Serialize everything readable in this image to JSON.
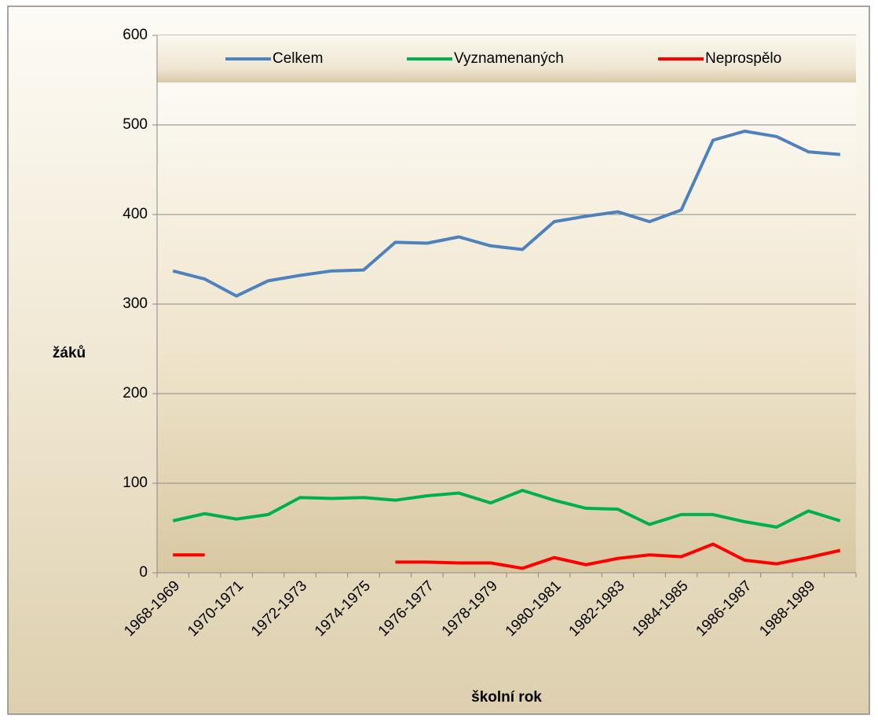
{
  "chart_data": {
    "type": "line",
    "xlabel": "školní rok",
    "ylabel": "žáků",
    "categories": [
      "1968-1969",
      null,
      "1970-1971",
      null,
      "1972-1973",
      null,
      "1974-1975",
      null,
      "1976-1977",
      null,
      "1978-1979",
      null,
      "1980-1981",
      null,
      "1982-1983",
      null,
      "1984-1985",
      null,
      "1986-1987",
      null,
      "1988-1989",
      null
    ],
    "series": [
      {
        "name": "Celkem",
        "color": "#4f81bd",
        "values": [
          337,
          328,
          309,
          326,
          332,
          337,
          338,
          369,
          368,
          375,
          365,
          361,
          392,
          398,
          403,
          392,
          405,
          483,
          493,
          487,
          470,
          467
        ]
      },
      {
        "name": "Vyznamenaných",
        "color": "#00b050",
        "values": [
          58,
          66,
          60,
          65,
          84,
          83,
          84,
          81,
          86,
          89,
          78,
          92,
          81,
          72,
          71,
          54,
          65,
          65,
          57,
          51,
          69,
          58
        ]
      },
      {
        "name": "Neprospělo",
        "color": "#ff0000",
        "values": [
          20,
          20,
          null,
          null,
          null,
          null,
          null,
          12,
          12,
          11,
          11,
          5,
          17,
          9,
          16,
          20,
          18,
          32,
          14,
          10,
          17,
          25
        ]
      }
    ],
    "ylim": [
      0,
      600
    ],
    "yticks": [
      0,
      100,
      200,
      300,
      400,
      500,
      600
    ],
    "grid": true,
    "legend": "top"
  }
}
